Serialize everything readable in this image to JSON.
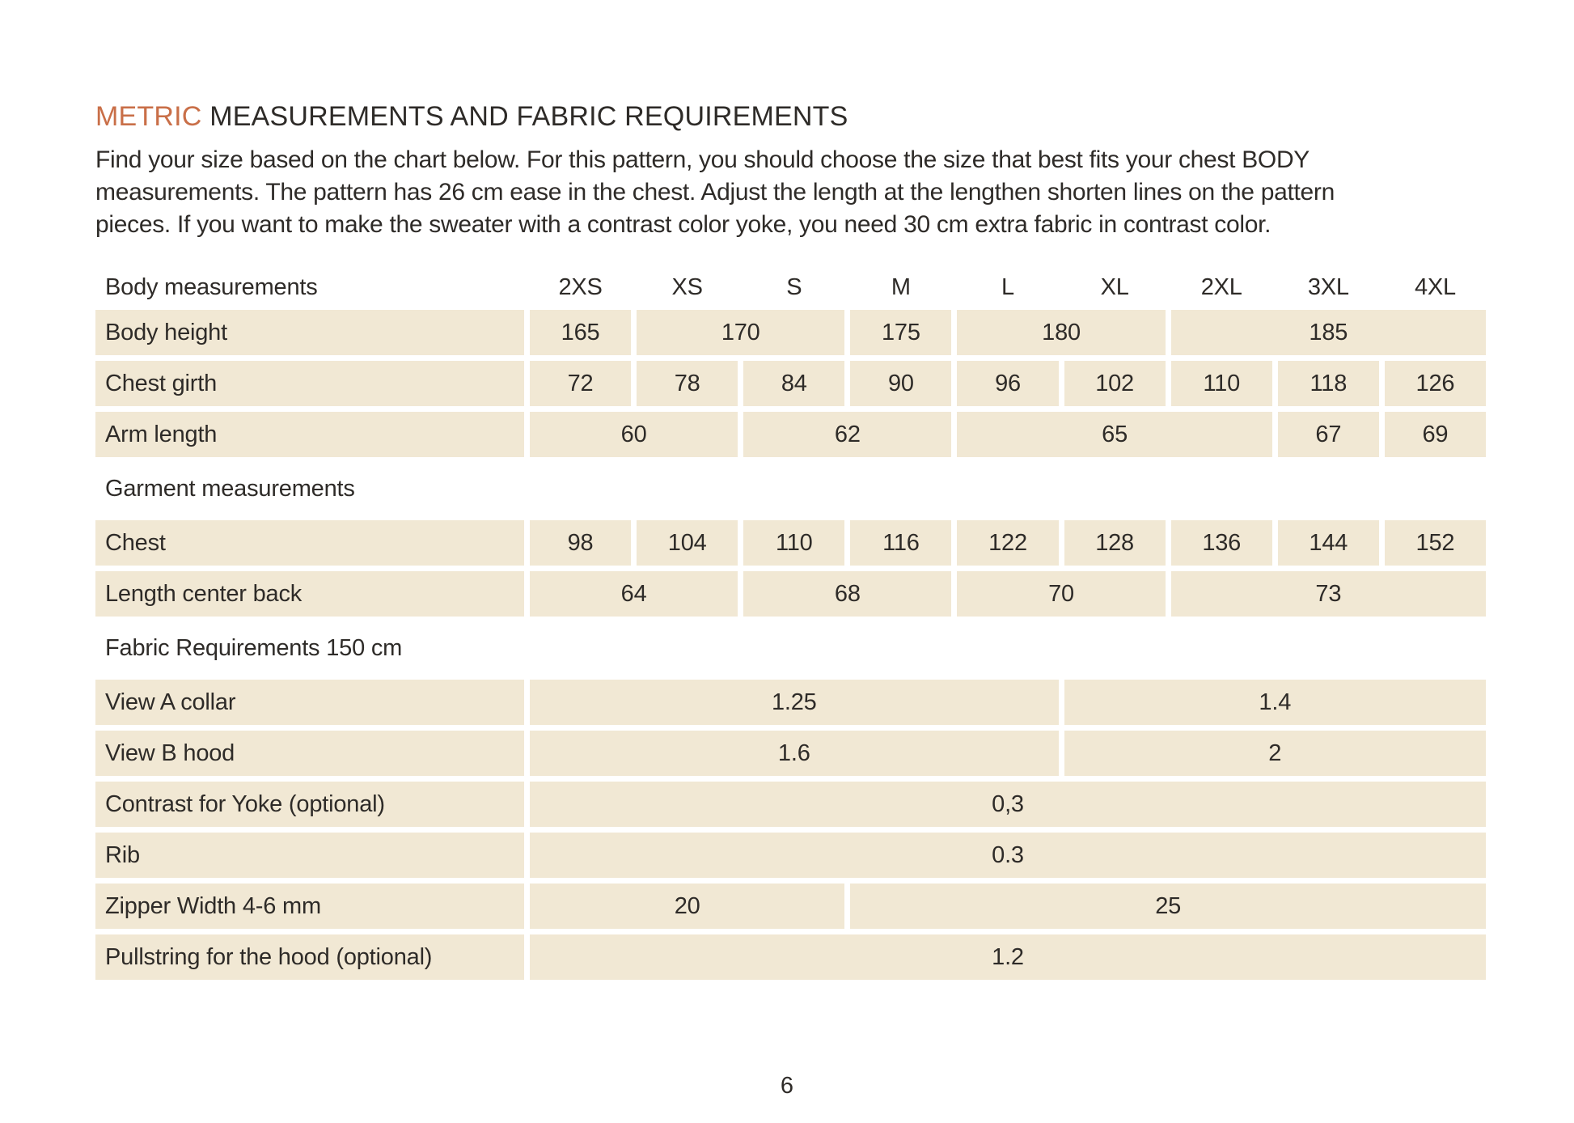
{
  "title": {
    "highlight": "METRIC",
    "rest": "MEASUREMENTS AND FABRIC REQUIREMENTS"
  },
  "intro_lines": [
    "Find your size based on the chart below. For this pattern, you should choose the size that best fits your chest BODY",
    "measurements. The pattern has 26 cm ease in the chest. Adjust the length at the lengthen shorten lines on the pattern",
    "pieces. If you want to make the sweater with a contrast color yoke, you need 30 cm extra fabric in contrast color."
  ],
  "colors": {
    "accent_orange": "#c96f48",
    "cell_beige": "#f1e8d4",
    "text_dark": "#2e2b28"
  },
  "size_table": {
    "header_label": "Body measurements",
    "sizes": [
      "2XS",
      "XS",
      "S",
      "M",
      "L",
      "XL",
      "2XL",
      "3XL",
      "4XL"
    ],
    "rows": [
      {
        "type": "data",
        "label": "Body height",
        "cells": [
          {
            "value": "165",
            "span": 1
          },
          {
            "value": "170",
            "span": 2
          },
          {
            "value": "175",
            "span": 1
          },
          {
            "value": "180",
            "span": 2
          },
          {
            "value": "185",
            "span": 3
          }
        ]
      },
      {
        "type": "data",
        "label": "Chest girth",
        "cells": [
          {
            "value": "72",
            "span": 1
          },
          {
            "value": "78",
            "span": 1
          },
          {
            "value": "84",
            "span": 1
          },
          {
            "value": "90",
            "span": 1
          },
          {
            "value": "96",
            "span": 1
          },
          {
            "value": "102",
            "span": 1
          },
          {
            "value": "110",
            "span": 1
          },
          {
            "value": "118",
            "span": 1
          },
          {
            "value": "126",
            "span": 1
          }
        ]
      },
      {
        "type": "data",
        "label": "Arm length",
        "cells": [
          {
            "value": "60",
            "span": 2
          },
          {
            "value": "62",
            "span": 2
          },
          {
            "value": "65",
            "span": 3
          },
          {
            "value": "67",
            "span": 1
          },
          {
            "value": "69",
            "span": 1
          }
        ]
      },
      {
        "type": "section",
        "label": "Garment measurements"
      },
      {
        "type": "data",
        "label": "Chest",
        "cells": [
          {
            "value": "98",
            "span": 1
          },
          {
            "value": "104",
            "span": 1
          },
          {
            "value": "110",
            "span": 1
          },
          {
            "value": "116",
            "span": 1
          },
          {
            "value": "122",
            "span": 1
          },
          {
            "value": "128",
            "span": 1
          },
          {
            "value": "136",
            "span": 1
          },
          {
            "value": "144",
            "span": 1
          },
          {
            "value": "152",
            "span": 1
          }
        ]
      },
      {
        "type": "data",
        "label": "Length center back",
        "cells": [
          {
            "value": "64",
            "span": 2
          },
          {
            "value": "68",
            "span": 2
          },
          {
            "value": "70",
            "span": 2
          },
          {
            "value": "73",
            "span": 3
          }
        ]
      },
      {
        "type": "section",
        "label": "Fabric Requirements 150 cm"
      },
      {
        "type": "data",
        "label": "View A collar",
        "cells": [
          {
            "value": "1.25",
            "span": 5
          },
          {
            "value": "1.4",
            "span": 4
          }
        ]
      },
      {
        "type": "data",
        "label": "View B hood",
        "cells": [
          {
            "value": "1.6",
            "span": 5
          },
          {
            "value": "2",
            "span": 4
          }
        ]
      },
      {
        "type": "data",
        "label": "Contrast for Yoke (optional)",
        "cells": [
          {
            "value": "0,3",
            "span": 9
          }
        ]
      },
      {
        "type": "data",
        "label": "Rib",
        "cells": [
          {
            "value": "0.3",
            "span": 9
          }
        ]
      },
      {
        "type": "data",
        "label": "Zipper Width 4-6 mm",
        "cells": [
          {
            "value": "20",
            "span": 3
          },
          {
            "value": "25",
            "span": 6
          }
        ]
      },
      {
        "type": "data",
        "label": "Pullstring for the hood (optional)",
        "cells": [
          {
            "value": "1.2",
            "span": 9
          }
        ]
      }
    ]
  },
  "footer": {
    "page_number": "6"
  }
}
